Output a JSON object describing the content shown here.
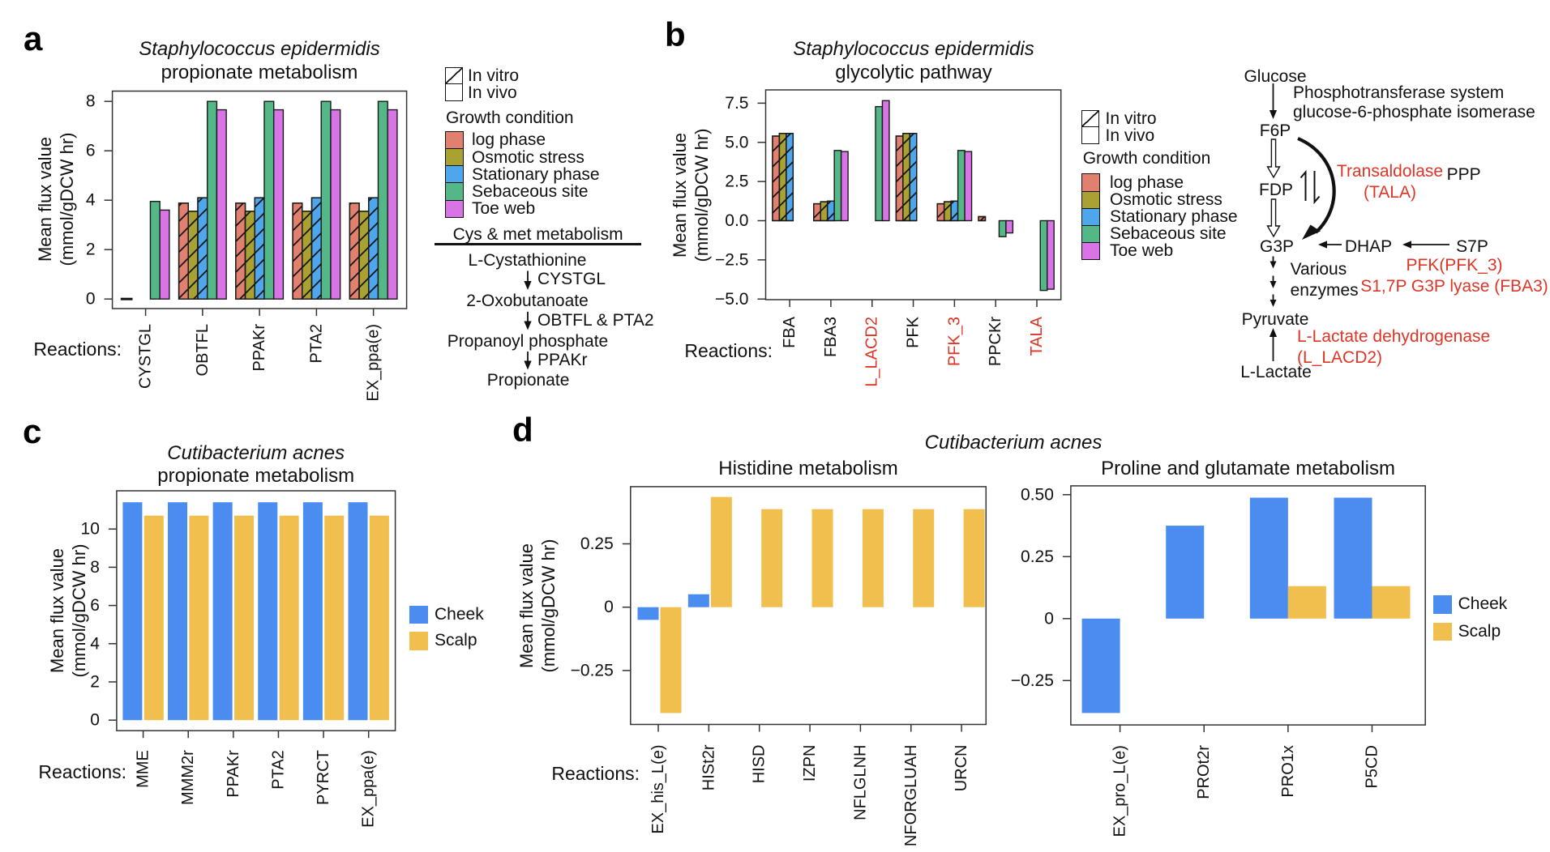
{
  "panels": {
    "a": {
      "label": "a",
      "title_species": "Staphylococcus epidermidis",
      "title_sub": "propionate metabolism",
      "y_axis_label": "Mean flux value\n(mmol/gDCW hr)",
      "x_axis_prefix": "Reactions:",
      "legend": {
        "in_vitro": "In vitro",
        "in_vivo": "In vivo",
        "group_title": "Growth condition",
        "items": [
          {
            "label": "log phase",
            "color": "#E2806F"
          },
          {
            "label": "Osmotic stress",
            "color": "#A9A232"
          },
          {
            "label": "Stationary phase",
            "color": "#4EA6EC"
          },
          {
            "label": "Sebaceous site",
            "color": "#54B787"
          },
          {
            "label": "Toe web",
            "color": "#D974E7"
          }
        ]
      },
      "pathway": {
        "title": "Cys & met metabolism",
        "compound_1": "L-Cystathionine",
        "enzyme_1": "CYSTGL",
        "compound_2": "2-Oxobutanoate",
        "enzyme_2": "OBTFL & PTA2",
        "compound_3": "Propanoyl phosphate",
        "enzyme_3": "PPAKr",
        "compound_4": "Propionate"
      }
    },
    "b": {
      "label": "b",
      "title_species": "Staphylococcus epidermidis",
      "title_sub": "glycolytic pathway",
      "y_axis_label": "Mean flux value\n(mmol/gDCW hr)",
      "x_axis_prefix": "Reactions:",
      "legend": {
        "in_vitro": "In vitro",
        "in_vivo": "In vivo",
        "group_title": "Growth condition",
        "items": [
          {
            "label": "log phase",
            "color": "#E2806F"
          },
          {
            "label": "Osmotic stress",
            "color": "#A9A232"
          },
          {
            "label": "Stationary phase",
            "color": "#4EA6EC"
          },
          {
            "label": "Sebaceous site",
            "color": "#54B787"
          },
          {
            "label": "Toe web",
            "color": "#D974E7"
          }
        ]
      },
      "pathway": {
        "glucose": "Glucose",
        "pts_line1": "Phosphotransferase system",
        "pts_line2": "glucose-6-phosphate isomerase",
        "f6p": "F6P",
        "fdp": "FDP",
        "g3p": "G3P",
        "transaldolase": "Transaldolase\n(TALA)",
        "ppp": "PPP",
        "dhap": "DHAP",
        "s7p": "S7P",
        "various_enzymes": "Various\nenzymes",
        "pfk_fba3": "PFK(PFK_3)\nS1,7P G3P lyase (FBA3)",
        "pyruvate": "Pyruvate",
        "lactate_dh": "L-Lactate dehydrogenase\n(L_LACD2)",
        "l_lactate": "L-Lactate"
      }
    },
    "c": {
      "label": "c",
      "title_species": "Cutibacterium acnes",
      "title_sub": "propionate metabolism",
      "y_axis_label": "Mean flux value\n(mmol/gDCW hr)",
      "x_axis_prefix": "Reactions:",
      "legend": {
        "items": [
          {
            "label": "Cheek",
            "color": "#4A8CF0"
          },
          {
            "label": "Scalp",
            "color": "#F0BF4D"
          }
        ]
      }
    },
    "d": {
      "label": "d",
      "title_species": "Cutibacterium acnes",
      "subtitle_left": "Histidine metabolism",
      "subtitle_right": "Proline and glutamate metabolism",
      "y_axis_label": "Mean flux value\n(mmol/gDCW hr)",
      "x_axis_prefix": "Reactions:",
      "legend": {
        "items": [
          {
            "label": "Cheek",
            "color": "#4A8CF0"
          },
          {
            "label": "Scalp",
            "color": "#F0BF4D"
          }
        ]
      }
    }
  },
  "colors": {
    "log_phase": "#E2806F",
    "osmotic_stress": "#A9A232",
    "stationary_phase": "#4EA6EC",
    "sebaceous_site": "#54B787",
    "toe_web": "#D974E7",
    "cheek": "#4A8CF0",
    "scalp": "#F0BF4D",
    "red_label": "#DE3526",
    "bar_outline": "#1a1a1a",
    "frame": "#333333"
  },
  "chart_data": [
    {
      "id": "a",
      "type": "bar",
      "title": "Staphylococcus epidermidis propionate metabolism",
      "xlabel": "Reactions:",
      "ylabel": "Mean flux value (mmol/gDCW hr)",
      "ylim": [
        -0.4,
        8.4
      ],
      "ytick_values": [
        0,
        2,
        4,
        6,
        8
      ],
      "ytick_labels": [
        "0",
        "2",
        "4",
        "6",
        "8"
      ],
      "categories": [
        "CYSTGL",
        "OBTFL",
        "PPAKr",
        "PTA2",
        "EX_ppa(e)"
      ],
      "red_categories": [],
      "series": [
        {
          "name": "log phase",
          "condition": "In vitro",
          "hatch": true,
          "color": "#E2806F",
          "values": [
            0,
            3.88,
            3.88,
            3.88,
            3.88
          ]
        },
        {
          "name": "Osmotic stress",
          "condition": "In vitro",
          "hatch": true,
          "color": "#A9A232",
          "values": [
            null,
            3.55,
            3.55,
            3.55,
            3.55
          ]
        },
        {
          "name": "Stationary phase",
          "condition": "In vitro",
          "hatch": true,
          "color": "#4EA6EC",
          "values": [
            null,
            4.1,
            4.1,
            4.1,
            4.1
          ]
        },
        {
          "name": "Sebaceous site",
          "condition": "In vivo",
          "hatch": false,
          "color": "#54B787",
          "values": [
            3.95,
            8.0,
            8.0,
            8.0,
            8.0
          ]
        },
        {
          "name": "Toe web",
          "condition": "In vivo",
          "hatch": false,
          "color": "#D974E7",
          "values": [
            3.6,
            7.66,
            7.66,
            7.66,
            7.66
          ]
        }
      ]
    },
    {
      "id": "b",
      "type": "bar",
      "title": "Staphylococcus epidermidis glycolytic pathway",
      "xlabel": "Reactions:",
      "ylabel": "Mean flux value (mmol/gDCW hr)",
      "ylim": [
        -5.05,
        8.35
      ],
      "ytick_values": [
        7.5,
        5.0,
        2.5,
        0.0,
        -2.5,
        -5.0
      ],
      "ytick_labels": [
        "7.5",
        "5.0",
        "2.5",
        "0.0",
        "−2.5",
        "−5.0"
      ],
      "categories": [
        "FBA",
        "FBA3",
        "L_LACD2",
        "PFK",
        "PFK_3",
        "PPCKr",
        "TALA"
      ],
      "red_categories": [
        "L_LACD2",
        "PFK_3",
        "TALA"
      ],
      "series": [
        {
          "name": "log phase",
          "condition": "In vitro",
          "hatch": true,
          "color": "#E2806F",
          "values": [
            5.4,
            1.08,
            null,
            5.4,
            1.08,
            0.26,
            null
          ]
        },
        {
          "name": "Osmotic stress",
          "condition": "In vitro",
          "hatch": true,
          "color": "#A9A232",
          "values": [
            5.57,
            1.21,
            null,
            5.57,
            1.21,
            null,
            null
          ]
        },
        {
          "name": "Stationary phase",
          "condition": "In vitro",
          "hatch": true,
          "color": "#4EA6EC",
          "values": [
            5.57,
            1.25,
            null,
            5.57,
            1.25,
            null,
            null
          ]
        },
        {
          "name": "Sebaceous site",
          "condition": "In vivo",
          "hatch": false,
          "color": "#54B787",
          "values": [
            null,
            4.48,
            7.28,
            null,
            4.48,
            -1.02,
            -4.45
          ]
        },
        {
          "name": "Toe web",
          "condition": "In vivo",
          "hatch": false,
          "color": "#D974E7",
          "values": [
            null,
            4.41,
            7.66,
            null,
            4.41,
            -0.78,
            -4.37
          ]
        }
      ]
    },
    {
      "id": "c",
      "type": "bar",
      "title": "Cutibacterium acnes propionate metabolism",
      "xlabel": "Reactions:",
      "ylabel": "Mean flux value (mmol/gDCW hr)",
      "ylim": [
        -0.55,
        12.0
      ],
      "ytick_values": [
        0,
        2,
        4,
        6,
        8,
        10
      ],
      "ytick_labels": [
        "0",
        "2",
        "4",
        "6",
        "8",
        "10"
      ],
      "categories": [
        "MME",
        "MMM2r",
        "PPAKr",
        "PTA2",
        "PYRCT",
        "EX_ppa(e)"
      ],
      "red_categories": [],
      "series": [
        {
          "name": "Cheek",
          "hatch": false,
          "color": "#4A8CF0",
          "values": [
            11.4,
            11.4,
            11.4,
            11.4,
            11.4,
            11.4
          ]
        },
        {
          "name": "Scalp",
          "hatch": false,
          "color": "#F0BF4D",
          "values": [
            10.7,
            10.7,
            10.7,
            10.7,
            10.7,
            10.7
          ]
        }
      ]
    },
    {
      "id": "dl",
      "type": "bar",
      "title": "Cutibacterium acnes Histidine metabolism",
      "xlabel": "Reactions:",
      "ylabel": "Mean flux value (mmol/gDCW hr)",
      "ylim": [
        -0.463,
        0.476
      ],
      "ytick_values": [
        0.25,
        0,
        -0.25
      ],
      "ytick_labels": [
        "0.25",
        "0",
        "−0.25"
      ],
      "categories": [
        "EX_his_L(e)",
        "HISt2r",
        "HISD",
        "IZPN",
        "NFLGLNH",
        "NFORGLUAH",
        "URCN"
      ],
      "red_categories": [],
      "series": [
        {
          "name": "Cheek",
          "hatch": false,
          "color": "#4A8CF0",
          "values": [
            -0.05,
            0.051,
            null,
            null,
            null,
            null,
            null
          ]
        },
        {
          "name": "Scalp",
          "hatch": false,
          "color": "#F0BF4D",
          "values": [
            -0.418,
            0.435,
            0.387,
            0.387,
            0.387,
            0.387,
            0.387
          ]
        }
      ]
    },
    {
      "id": "dr",
      "type": "bar",
      "title": "Cutibacterium acnes Proline and glutamate metabolism",
      "xlabel": "Reactions:",
      "ylabel": "Mean flux value (mmol/gDCW hr)",
      "ylim": [
        -0.429,
        0.536
      ],
      "ytick_values": [
        0.5,
        0.25,
        0,
        -0.25
      ],
      "ytick_labels": [
        "0.50",
        "0.25",
        "0",
        "−0.25"
      ],
      "categories": [
        "EX_pro_L(e)",
        "PROt2r",
        "PRO1x",
        "P5CD"
      ],
      "red_categories": [],
      "series": [
        {
          "name": "Cheek",
          "hatch": false,
          "color": "#4A8CF0",
          "values": [
            -0.381,
            0.375,
            0.488,
            0.488
          ]
        },
        {
          "name": "Scalp",
          "hatch": false,
          "color": "#F0BF4D",
          "values": [
            null,
            null,
            0.131,
            0.131
          ]
        }
      ]
    }
  ]
}
